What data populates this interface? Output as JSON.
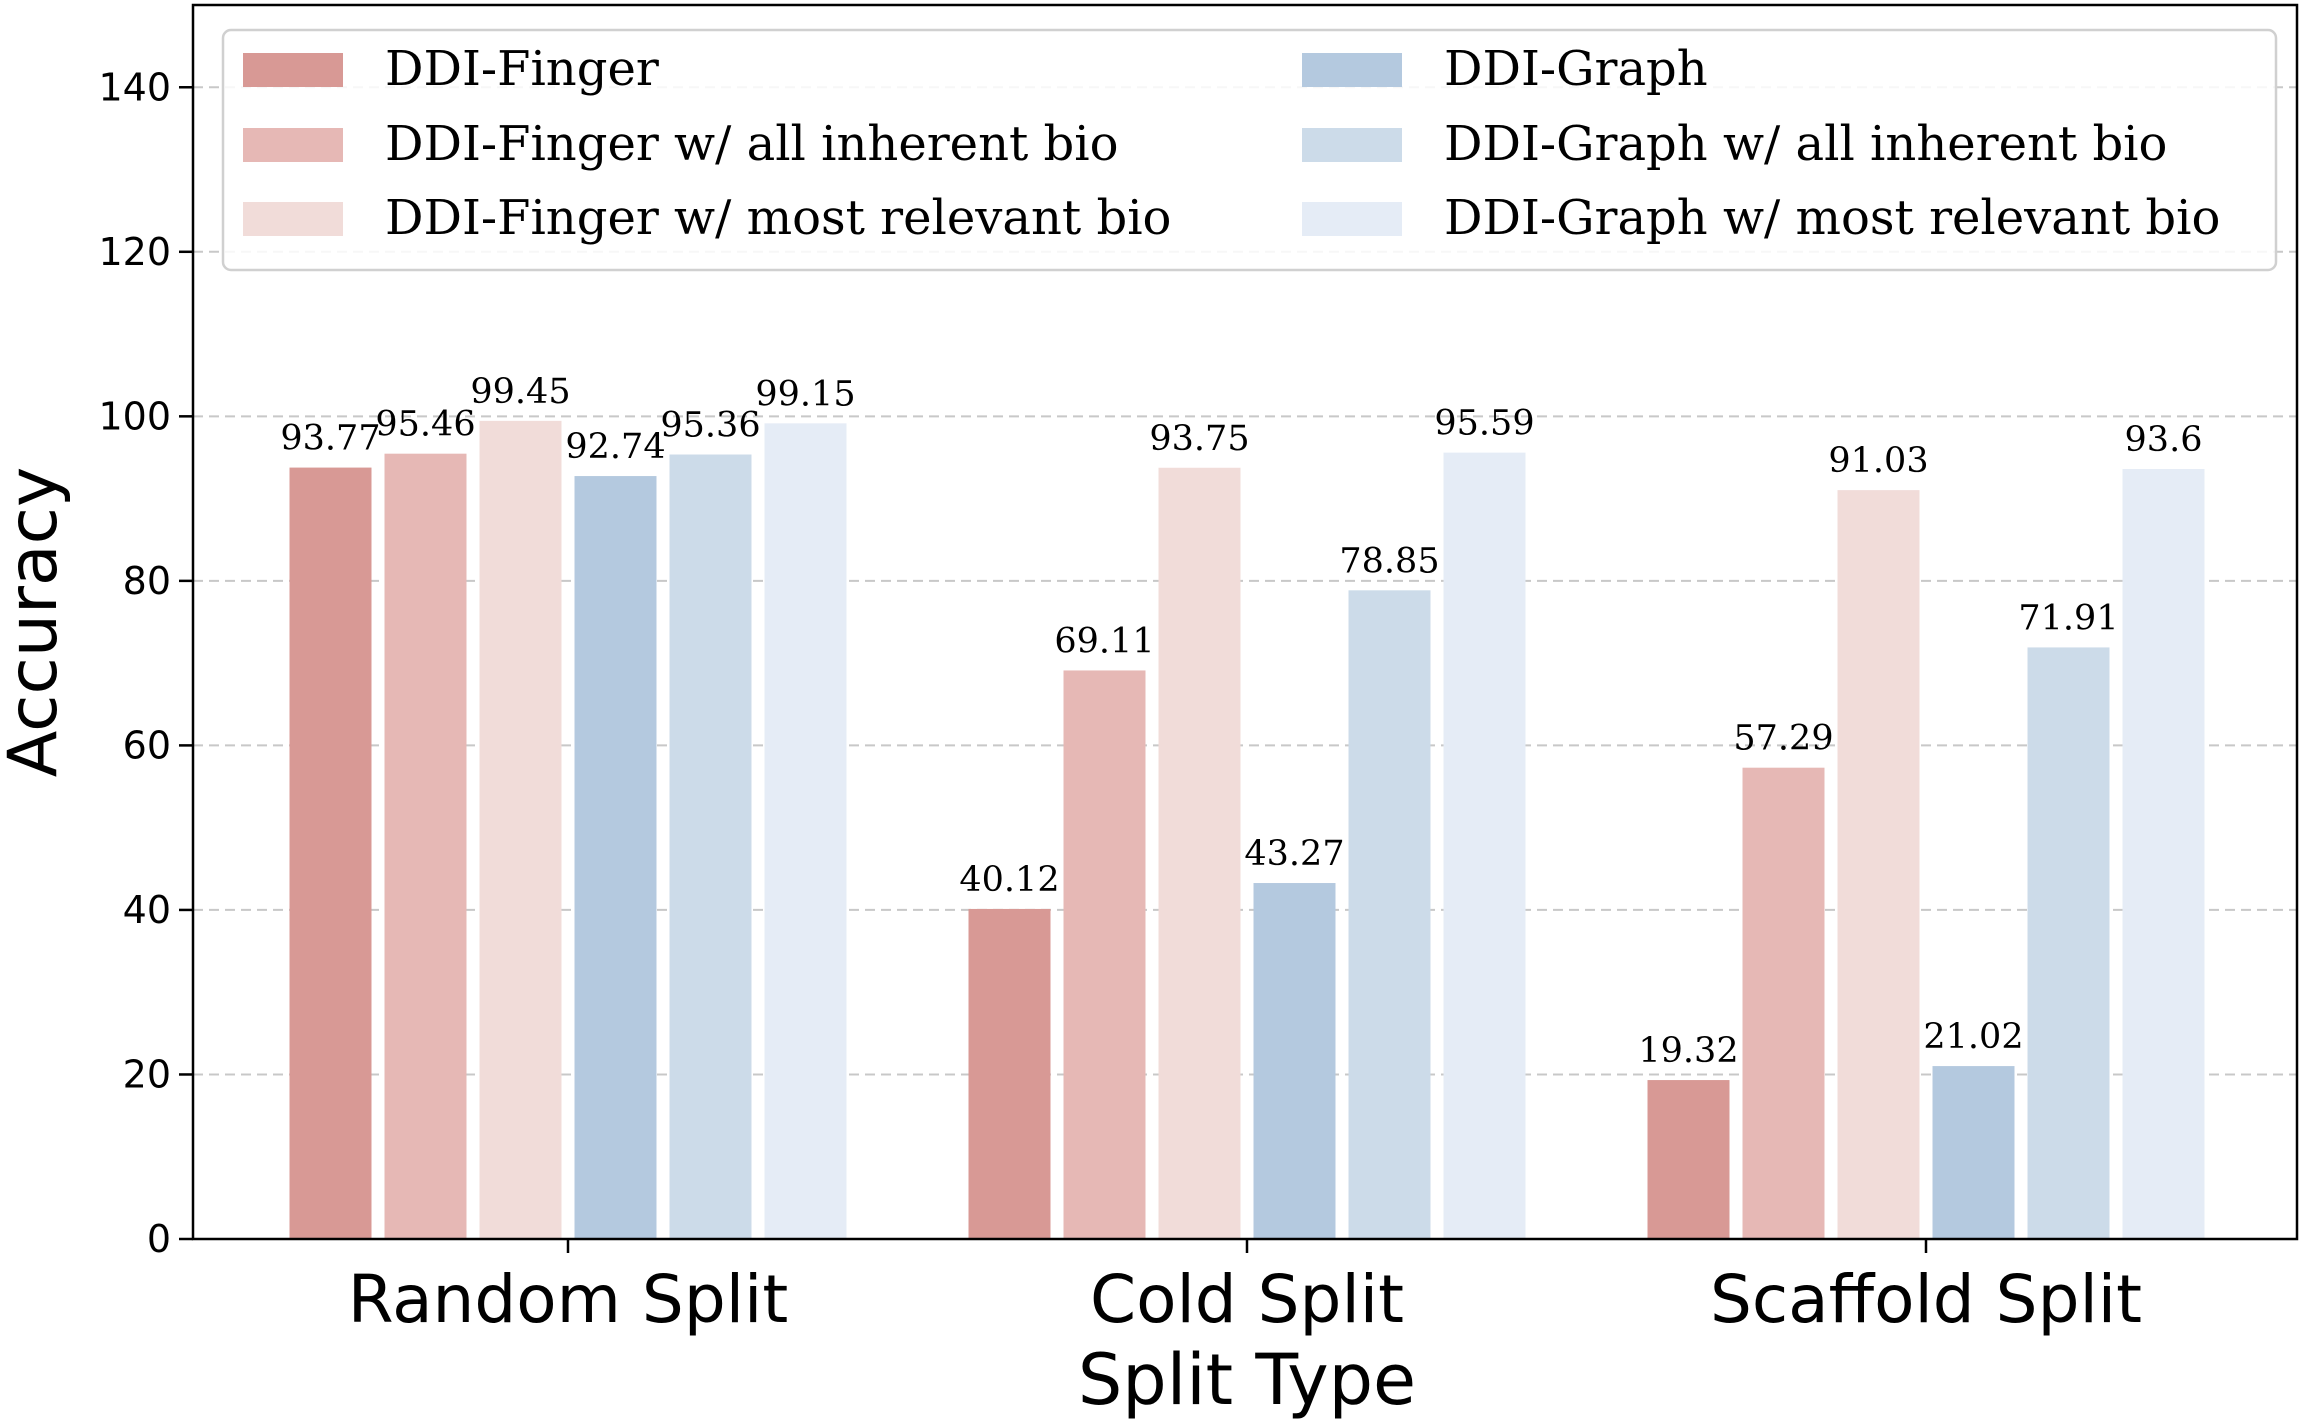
{
  "chart_data": {
    "type": "bar",
    "title": "",
    "xlabel": "Split Type",
    "ylabel": "Accuracy",
    "ylim": [
      0,
      150
    ],
    "yticks": [
      0,
      20,
      40,
      60,
      80,
      100,
      120,
      140
    ],
    "grid": true,
    "legend_placement": "top",
    "categories": [
      "Random Split",
      "Cold Split",
      "Scaffold Split"
    ],
    "series": [
      {
        "name": "DDI-Finger",
        "color": "#d89995",
        "values": [
          93.77,
          40.12,
          19.32
        ],
        "labels": [
          "93.77",
          "40.12",
          "19.32"
        ]
      },
      {
        "name": "DDI-Finger w/ all inherent bio",
        "color": "#e6b8b5",
        "values": [
          95.46,
          69.11,
          57.29
        ],
        "labels": [
          "95.46",
          "69.11",
          "57.29"
        ]
      },
      {
        "name": "DDI-Finger w/ most relevant bio",
        "color": "#f1dcd9",
        "values": [
          99.45,
          93.75,
          91.03
        ],
        "labels": [
          "99.45",
          "93.75",
          "91.03"
        ]
      },
      {
        "name": "DDI-Graph",
        "color": "#b4c9df",
        "values": [
          92.74,
          43.27,
          21.02
        ],
        "labels": [
          "92.74",
          "43.27",
          "21.02"
        ]
      },
      {
        "name": "DDI-Graph w/ all inherent bio",
        "color": "#ccdbe9",
        "values": [
          95.36,
          78.85,
          71.91
        ],
        "labels": [
          "95.36",
          "78.85",
          "71.91"
        ]
      },
      {
        "name": "DDI-Graph w/ most relevant bio",
        "color": "#e5ecf6",
        "values": [
          99.15,
          95.59,
          93.6
        ],
        "labels": [
          "99.15",
          "95.59",
          "93.6"
        ]
      }
    ]
  }
}
